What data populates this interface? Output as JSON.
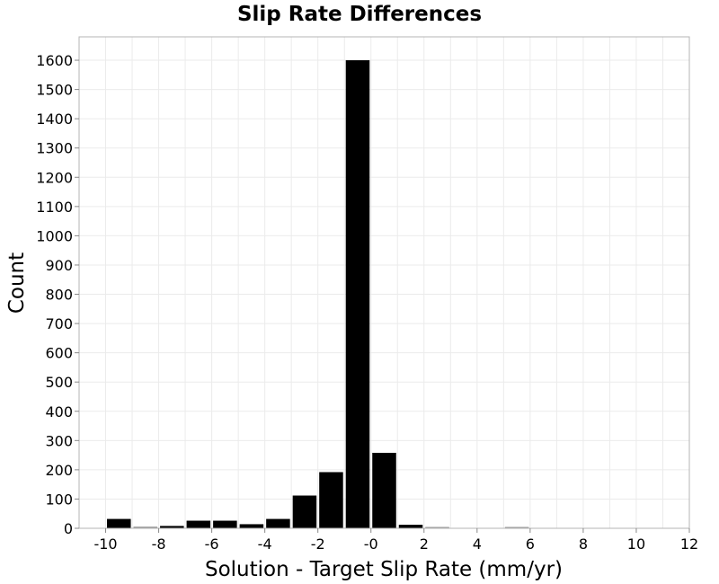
{
  "chart_data": {
    "type": "bar",
    "title": "Slip Rate Differences",
    "xlabel": "Solution - Target Slip Rate (mm/yr)",
    "ylabel": "Count",
    "xlim": [
      -11,
      12
    ],
    "ylim": [
      0,
      1680
    ],
    "x_ticks": [
      -10,
      -8,
      -6,
      -4,
      -2,
      0,
      2,
      4,
      6,
      8,
      10,
      12
    ],
    "x_tick_labels": [
      "-10",
      "-8",
      "-6",
      "-4",
      "-2",
      "-0",
      "2",
      "4",
      "6",
      "8",
      "10",
      "12"
    ],
    "y_ticks": [
      0,
      100,
      200,
      300,
      400,
      500,
      600,
      700,
      800,
      900,
      1000,
      1100,
      1200,
      1300,
      1400,
      1500,
      1600
    ],
    "grid": true,
    "bin_width": 1,
    "series": [
      {
        "x": [
          -9.5,
          -8.5,
          -7.5,
          -6.5,
          -5.5,
          -4.5,
          -3.5,
          -2.5,
          -1.5,
          -0.5,
          0.5,
          1.5,
          2.5,
          3.5,
          4.5,
          5.5,
          6.5,
          7.5,
          8.5,
          9.5,
          10.5,
          11.5
        ],
        "values": [
          32,
          5,
          8,
          26,
          26,
          14,
          32,
          112,
          192,
          1600,
          258,
          12,
          2,
          0,
          0,
          1,
          0,
          0,
          0,
          0,
          0,
          0
        ]
      }
    ],
    "colors": {
      "bar": "#000000",
      "grid": "#ebebeb",
      "frame": "#b4b4b4"
    }
  }
}
